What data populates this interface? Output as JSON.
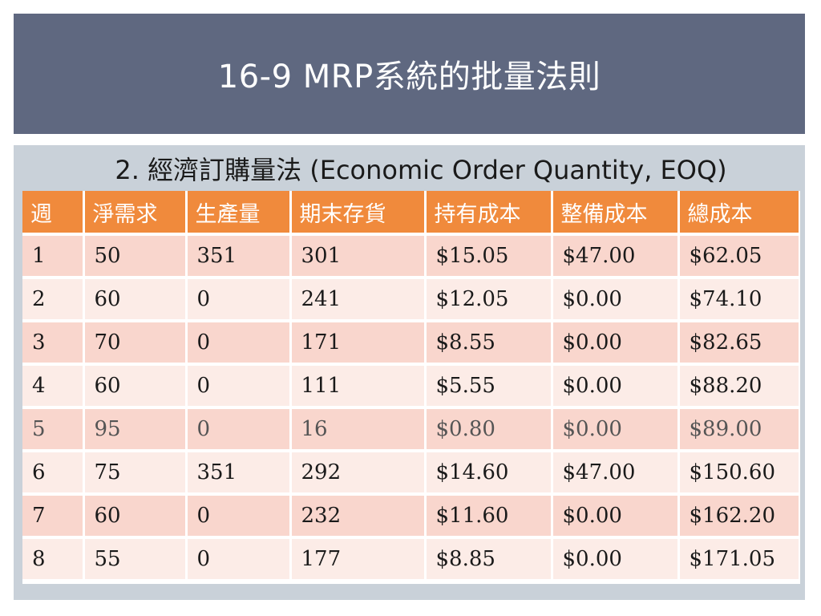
{
  "slide": {
    "title": "16-9 MRP系統的批量法則",
    "subtitle": "2. 經濟訂購量法 (Economic Order Quantity, EOQ)"
  },
  "colors": {
    "title_bar": "#5f6880",
    "content_panel": "#c9d1d9",
    "header_row": "#f08a3c",
    "row_dark": "#f9d6cd",
    "row_light": "#fcece7"
  },
  "table": {
    "headers": [
      "週",
      "淨需求",
      "生產量",
      "期末存貨",
      "持有成本",
      "整備成本",
      "總成本"
    ],
    "rows": [
      [
        "1",
        "50",
        "351",
        "301",
        "$15.05",
        "$47.00",
        "$62.05"
      ],
      [
        "2",
        "60",
        "0",
        "241",
        "$12.05",
        "$0.00",
        "$74.10"
      ],
      [
        "3",
        "70",
        "0",
        "171",
        "$8.55",
        "$0.00",
        "$82.65"
      ],
      [
        "4",
        "60",
        "0",
        "111",
        "$5.55",
        "$0.00",
        "$88.20"
      ],
      [
        "5",
        "95",
        "0",
        "16",
        "$0.80",
        "$0.00",
        "$89.00"
      ],
      [
        "6",
        "75",
        "351",
        "292",
        "$14.60",
        "$47.00",
        "$150.60"
      ],
      [
        "7",
        "60",
        "0",
        "232",
        "$11.60",
        "$0.00",
        "$162.20"
      ],
      [
        "8",
        "55",
        "0",
        "177",
        "$8.85",
        "$0.00",
        "$171.05"
      ]
    ]
  }
}
